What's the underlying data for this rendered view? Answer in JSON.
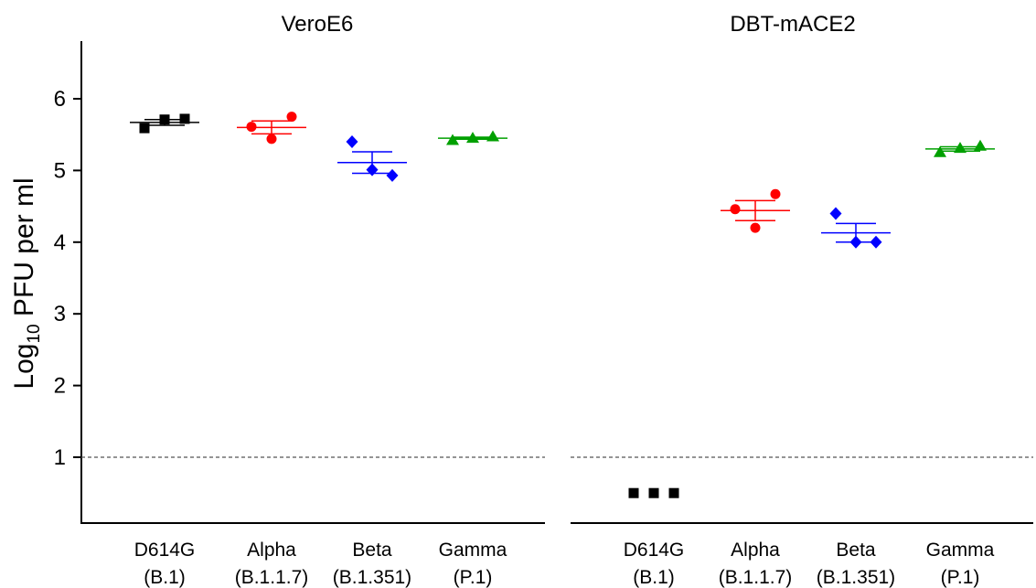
{
  "chart_data": {
    "type": "scatter",
    "ylabel": {
      "prefix": "Log",
      "subscript": "10",
      "suffix": " PFU per ml"
    },
    "ylim": [
      0,
      7
    ],
    "yticks": [
      "1",
      "2",
      "3",
      "4",
      "5",
      "6"
    ],
    "ytick_values": [
      1,
      2,
      3,
      4,
      5,
      6
    ],
    "limit_of_detection": 1,
    "categories": [
      {
        "name": "D614G",
        "lineage": "(B.1)"
      },
      {
        "name": "Alpha",
        "lineage": "(B.1.1.7)"
      },
      {
        "name": "Beta",
        "lineage": "(B.1.351)"
      },
      {
        "name": "Gamma",
        "lineage": "(P.1)"
      }
    ],
    "colors": [
      "#000000",
      "#ff0000",
      "#0000ff",
      "#00a000"
    ],
    "markers": [
      "square",
      "circle",
      "diamond",
      "triangle"
    ],
    "panels": [
      {
        "title": "VeroE6",
        "series": [
          {
            "values": [
              5.59,
              5.71,
              5.72
            ],
            "mean": 5.67,
            "sem": 0.04
          },
          {
            "values": [
              5.61,
              5.44,
              5.75
            ],
            "mean": 5.6,
            "sem": 0.09
          },
          {
            "values": [
              5.4,
              5.01,
              4.93
            ],
            "mean": 5.11,
            "sem": 0.15
          },
          {
            "values": [
              5.42,
              5.45,
              5.47
            ],
            "mean": 5.45,
            "sem": 0.015
          }
        ]
      },
      {
        "title": "DBT-mACE2",
        "series": [
          {
            "values": [
              0.5,
              0.5,
              0.5
            ],
            "mean": null,
            "sem": null
          },
          {
            "values": [
              4.46,
              4.2,
              4.67
            ],
            "mean": 4.44,
            "sem": 0.14
          },
          {
            "values": [
              4.4,
              4.0,
              4.0
            ],
            "mean": 4.13,
            "sem": 0.13
          },
          {
            "values": [
              5.25,
              5.31,
              5.34
            ],
            "mean": 5.3,
            "sem": 0.03
          }
        ]
      }
    ]
  }
}
